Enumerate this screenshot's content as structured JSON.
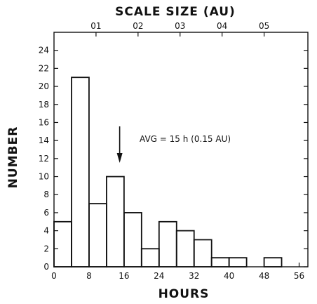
{
  "chart_data": {
    "type": "bar",
    "title": "",
    "xlabel": "HOURS",
    "ylabel": "NUMBER",
    "top_axis_label": "SCALE SIZE (AU)",
    "xlim": [
      0,
      58
    ],
    "ylim": [
      0,
      26
    ],
    "bin_edges": [
      0,
      4,
      8,
      12,
      16,
      20,
      24,
      28,
      32,
      36,
      40,
      44,
      48,
      52
    ],
    "values": [
      5,
      21,
      7,
      10,
      6,
      2,
      5,
      4,
      3,
      1,
      1,
      0,
      1
    ],
    "x_ticks": [
      0,
      8,
      16,
      24,
      32,
      40,
      48,
      56
    ],
    "x_tick_labels": [
      "0",
      "8",
      "16",
      "24",
      "32",
      "40",
      "48",
      "56"
    ],
    "y_ticks": [
      0,
      2,
      4,
      6,
      8,
      10,
      12,
      14,
      16,
      18,
      20,
      22,
      24
    ],
    "y_tick_labels": [
      "0",
      "2",
      "4",
      "6",
      "8",
      "10",
      "12",
      "14",
      "16",
      "18",
      "20",
      "22",
      "24"
    ],
    "top_ticks_hours": [
      9.6,
      19.2,
      28.8,
      38.4,
      48
    ],
    "top_tick_labels": [
      "01",
      "02",
      "03",
      "04",
      "05"
    ],
    "annotation": {
      "text": "AVG = 15 h (0.15 AU)",
      "x": 15
    },
    "color": "#111111",
    "grid": false
  }
}
